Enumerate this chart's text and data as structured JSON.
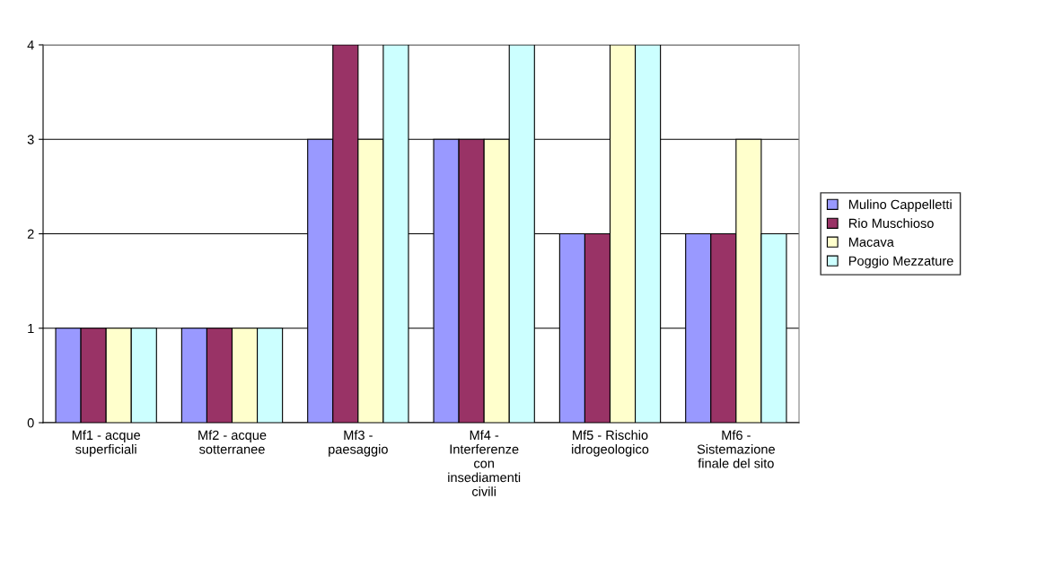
{
  "chart_data": {
    "type": "bar",
    "categories": [
      "Mf1 - acque\nsuperficiali",
      "Mf2 - acque\nsotterranee",
      "Mf3 -\npaesaggio",
      "Mf4 -\nInterferenze\ncon\ninsediamenti\ncivili",
      "Mf5 - Rischio\nidrogeologico",
      "Mf6 -\nSistemazione\nfinale del sito"
    ],
    "series": [
      {
        "name": "Mulino Cappelletti",
        "color": "#9999ff",
        "values": [
          1,
          1,
          3,
          3,
          2,
          2
        ]
      },
      {
        "name": "Rio Muschioso",
        "color": "#993366",
        "values": [
          1,
          1,
          4,
          3,
          2,
          2
        ]
      },
      {
        "name": "Macava",
        "color": "#ffffcc",
        "values": [
          1,
          1,
          3,
          3,
          4,
          3
        ]
      },
      {
        "name": "Poggio Mezzature",
        "color": "#ccffff",
        "values": [
          1,
          1,
          4,
          4,
          4,
          2
        ]
      }
    ],
    "ylim": [
      0,
      4
    ],
    "yticks": [
      0,
      1,
      2,
      3,
      4
    ],
    "grid": "y",
    "legend": "right"
  }
}
